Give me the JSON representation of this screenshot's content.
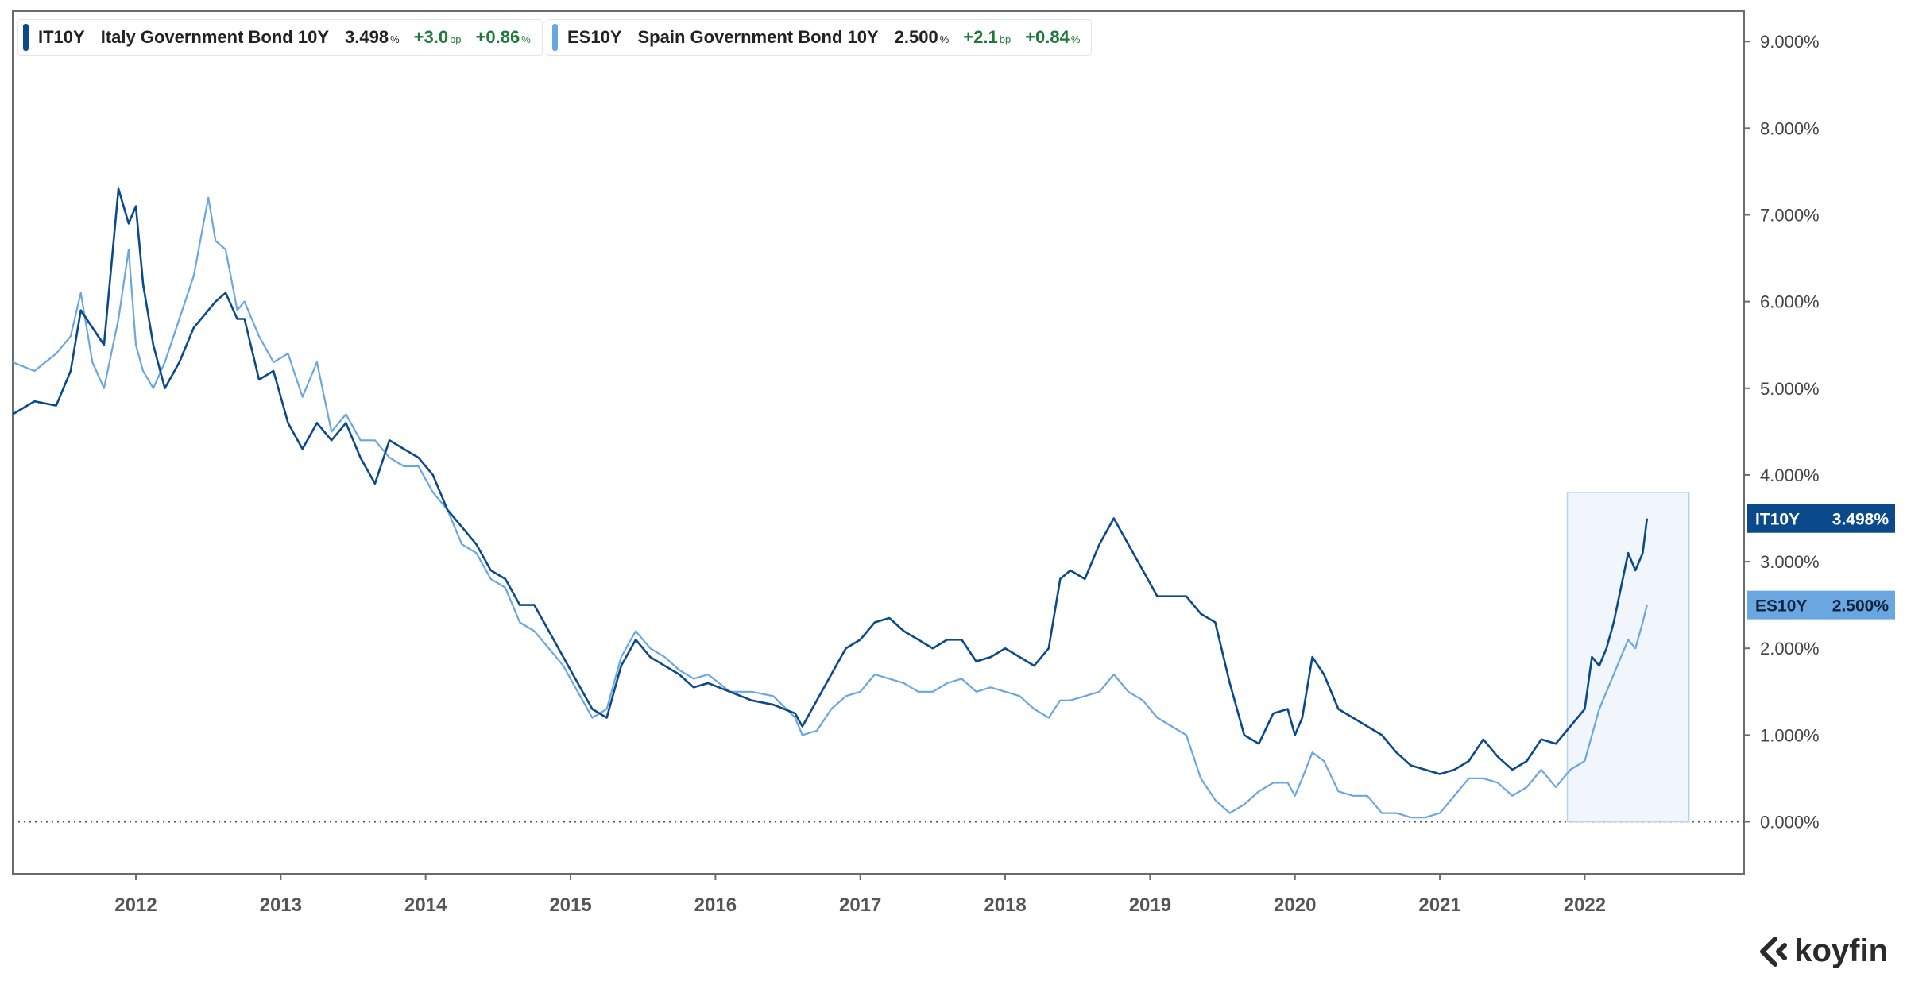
{
  "legend": [
    {
      "ticker": "IT10Y",
      "name": "Italy Government Bond 10Y",
      "value": "3.498",
      "unit": "%",
      "change_bp": "+3.0",
      "change_bp_unit": "bp",
      "change_pct": "+0.86",
      "change_pct_unit": "%",
      "color": "#0b4a8a"
    },
    {
      "ticker": "ES10Y",
      "name": "Spain Government Bond 10Y",
      "value": "2.500",
      "unit": "%",
      "change_bp": "+2.1",
      "change_bp_unit": "bp",
      "change_pct": "+0.84",
      "change_pct_unit": "%",
      "color": "#6aa6e0"
    }
  ],
  "price_tags": [
    {
      "ticker": "IT10Y",
      "value": "3.498%",
      "color": "#0b4a8a"
    },
    {
      "ticker": "ES10Y",
      "value": "2.500%",
      "color": "#6aa6e0"
    }
  ],
  "logo": {
    "text": "koyfin"
  },
  "chart_data": {
    "type": "line",
    "xlim": [
      2011.15,
      2023.1
    ],
    "ylim": [
      -0.6,
      9.35
    ],
    "x_ticks": [
      2012,
      2013,
      2014,
      2015,
      2016,
      2017,
      2018,
      2019,
      2020,
      2021,
      2022
    ],
    "x_tick_labels": [
      "2012",
      "2013",
      "2014",
      "2015",
      "2016",
      "2017",
      "2018",
      "2019",
      "2020",
      "2021",
      "2022"
    ],
    "y_ticks": [
      0,
      1,
      2,
      3,
      4,
      5,
      6,
      7,
      8,
      9
    ],
    "y_tick_labels": [
      "0.000%",
      "1.000%",
      "2.000%",
      "3.000%",
      "4.000%",
      "5.000%",
      "6.000%",
      "7.000%",
      "8.000%",
      "9.000%"
    ],
    "zero_line": "dotted",
    "highlight_region": {
      "x": [
        2021.88,
        2022.72
      ],
      "y": [
        0,
        3.8
      ]
    },
    "series": [
      {
        "name": "IT10Y",
        "color": "#0b4a8a",
        "x": [
          2011.15,
          2011.3,
          2011.45,
          2011.55,
          2011.62,
          2011.7,
          2011.78,
          2011.88,
          2011.95,
          2012.0,
          2012.05,
          2012.12,
          2012.2,
          2012.3,
          2012.4,
          2012.5,
          2012.55,
          2012.62,
          2012.7,
          2012.75,
          2012.85,
          2012.95,
          2013.05,
          2013.15,
          2013.25,
          2013.35,
          2013.45,
          2013.55,
          2013.65,
          2013.75,
          2013.85,
          2013.95,
          2014.05,
          2014.15,
          2014.25,
          2014.35,
          2014.45,
          2014.55,
          2014.65,
          2014.75,
          2014.85,
          2014.95,
          2015.05,
          2015.15,
          2015.25,
          2015.35,
          2015.45,
          2015.55,
          2015.65,
          2015.75,
          2015.85,
          2015.95,
          2016.1,
          2016.25,
          2016.4,
          2016.55,
          2016.6,
          2016.7,
          2016.8,
          2016.9,
          2017.0,
          2017.1,
          2017.2,
          2017.3,
          2017.4,
          2017.5,
          2017.6,
          2017.7,
          2017.8,
          2017.9,
          2018.0,
          2018.1,
          2018.2,
          2018.3,
          2018.38,
          2018.45,
          2018.55,
          2018.65,
          2018.75,
          2018.85,
          2018.95,
          2019.05,
          2019.15,
          2019.25,
          2019.35,
          2019.45,
          2019.55,
          2019.65,
          2019.75,
          2019.85,
          2019.95,
          2020.0,
          2020.05,
          2020.12,
          2020.2,
          2020.3,
          2020.4,
          2020.5,
          2020.6,
          2020.7,
          2020.8,
          2020.9,
          2021.0,
          2021.1,
          2021.2,
          2021.3,
          2021.4,
          2021.5,
          2021.6,
          2021.7,
          2021.8,
          2021.9,
          2022.0,
          2022.05,
          2022.1,
          2022.15,
          2022.2,
          2022.25,
          2022.3,
          2022.35,
          2022.4,
          2022.43
        ],
        "y": [
          4.7,
          4.85,
          4.8,
          5.2,
          5.9,
          5.7,
          5.5,
          7.3,
          6.9,
          7.1,
          6.2,
          5.5,
          5.0,
          5.3,
          5.7,
          5.9,
          6.0,
          6.1,
          5.8,
          5.8,
          5.1,
          5.2,
          4.6,
          4.3,
          4.6,
          4.4,
          4.6,
          4.2,
          3.9,
          4.4,
          4.3,
          4.2,
          4.0,
          3.6,
          3.4,
          3.2,
          2.9,
          2.8,
          2.5,
          2.5,
          2.2,
          1.9,
          1.6,
          1.3,
          1.2,
          1.8,
          2.1,
          1.9,
          1.8,
          1.7,
          1.55,
          1.6,
          1.5,
          1.4,
          1.35,
          1.25,
          1.1,
          1.4,
          1.7,
          2.0,
          2.1,
          2.3,
          2.35,
          2.2,
          2.1,
          2.0,
          2.1,
          2.1,
          1.85,
          1.9,
          2.0,
          1.9,
          1.8,
          2.0,
          2.8,
          2.9,
          2.8,
          3.2,
          3.5,
          3.2,
          2.9,
          2.6,
          2.6,
          2.6,
          2.4,
          2.3,
          1.6,
          1.0,
          0.9,
          1.25,
          1.3,
          1.0,
          1.2,
          1.9,
          1.7,
          1.3,
          1.2,
          1.1,
          1.0,
          0.8,
          0.65,
          0.6,
          0.55,
          0.6,
          0.7,
          0.95,
          0.75,
          0.6,
          0.7,
          0.95,
          0.9,
          1.1,
          1.3,
          1.9,
          1.8,
          2.0,
          2.3,
          2.7,
          3.1,
          2.9,
          3.1,
          3.498
        ]
      },
      {
        "name": "ES10Y",
        "color": "#6aa6e0",
        "x": [
          2011.15,
          2011.3,
          2011.45,
          2011.55,
          2011.62,
          2011.7,
          2011.78,
          2011.88,
          2011.95,
          2012.0,
          2012.05,
          2012.12,
          2012.2,
          2012.3,
          2012.4,
          2012.5,
          2012.55,
          2012.62,
          2012.7,
          2012.75,
          2012.85,
          2012.95,
          2013.05,
          2013.15,
          2013.25,
          2013.35,
          2013.45,
          2013.55,
          2013.65,
          2013.75,
          2013.85,
          2013.95,
          2014.05,
          2014.15,
          2014.25,
          2014.35,
          2014.45,
          2014.55,
          2014.65,
          2014.75,
          2014.85,
          2014.95,
          2015.05,
          2015.15,
          2015.25,
          2015.35,
          2015.45,
          2015.55,
          2015.65,
          2015.75,
          2015.85,
          2015.95,
          2016.1,
          2016.25,
          2016.4,
          2016.55,
          2016.6,
          2016.7,
          2016.8,
          2016.9,
          2017.0,
          2017.1,
          2017.2,
          2017.3,
          2017.4,
          2017.5,
          2017.6,
          2017.7,
          2017.8,
          2017.9,
          2018.0,
          2018.1,
          2018.2,
          2018.3,
          2018.38,
          2018.45,
          2018.55,
          2018.65,
          2018.75,
          2018.85,
          2018.95,
          2019.05,
          2019.15,
          2019.25,
          2019.35,
          2019.45,
          2019.55,
          2019.65,
          2019.75,
          2019.85,
          2019.95,
          2020.0,
          2020.05,
          2020.12,
          2020.2,
          2020.3,
          2020.4,
          2020.5,
          2020.6,
          2020.7,
          2020.8,
          2020.9,
          2021.0,
          2021.1,
          2021.2,
          2021.3,
          2021.4,
          2021.5,
          2021.6,
          2021.7,
          2021.8,
          2021.9,
          2022.0,
          2022.05,
          2022.1,
          2022.15,
          2022.2,
          2022.25,
          2022.3,
          2022.35,
          2022.4,
          2022.43
        ],
        "y": [
          5.3,
          5.2,
          5.4,
          5.6,
          6.1,
          5.3,
          5.0,
          5.8,
          6.6,
          5.5,
          5.2,
          5.0,
          5.3,
          5.8,
          6.3,
          7.2,
          6.7,
          6.6,
          5.9,
          6.0,
          5.6,
          5.3,
          5.4,
          4.9,
          5.3,
          4.5,
          4.7,
          4.4,
          4.4,
          4.2,
          4.1,
          4.1,
          3.8,
          3.6,
          3.2,
          3.1,
          2.8,
          2.7,
          2.3,
          2.2,
          2.0,
          1.8,
          1.5,
          1.2,
          1.3,
          1.9,
          2.2,
          2.0,
          1.9,
          1.75,
          1.65,
          1.7,
          1.5,
          1.5,
          1.45,
          1.2,
          1.0,
          1.05,
          1.3,
          1.45,
          1.5,
          1.7,
          1.65,
          1.6,
          1.5,
          1.5,
          1.6,
          1.65,
          1.5,
          1.55,
          1.5,
          1.45,
          1.3,
          1.2,
          1.4,
          1.4,
          1.45,
          1.5,
          1.7,
          1.5,
          1.4,
          1.2,
          1.1,
          1.0,
          0.5,
          0.25,
          0.1,
          0.2,
          0.35,
          0.45,
          0.45,
          0.3,
          0.5,
          0.8,
          0.7,
          0.35,
          0.3,
          0.3,
          0.1,
          0.1,
          0.05,
          0.05,
          0.1,
          0.3,
          0.5,
          0.5,
          0.45,
          0.3,
          0.4,
          0.6,
          0.4,
          0.6,
          0.7,
          1.0,
          1.3,
          1.5,
          1.7,
          1.9,
          2.1,
          2.0,
          2.3,
          2.5
        ]
      }
    ]
  }
}
